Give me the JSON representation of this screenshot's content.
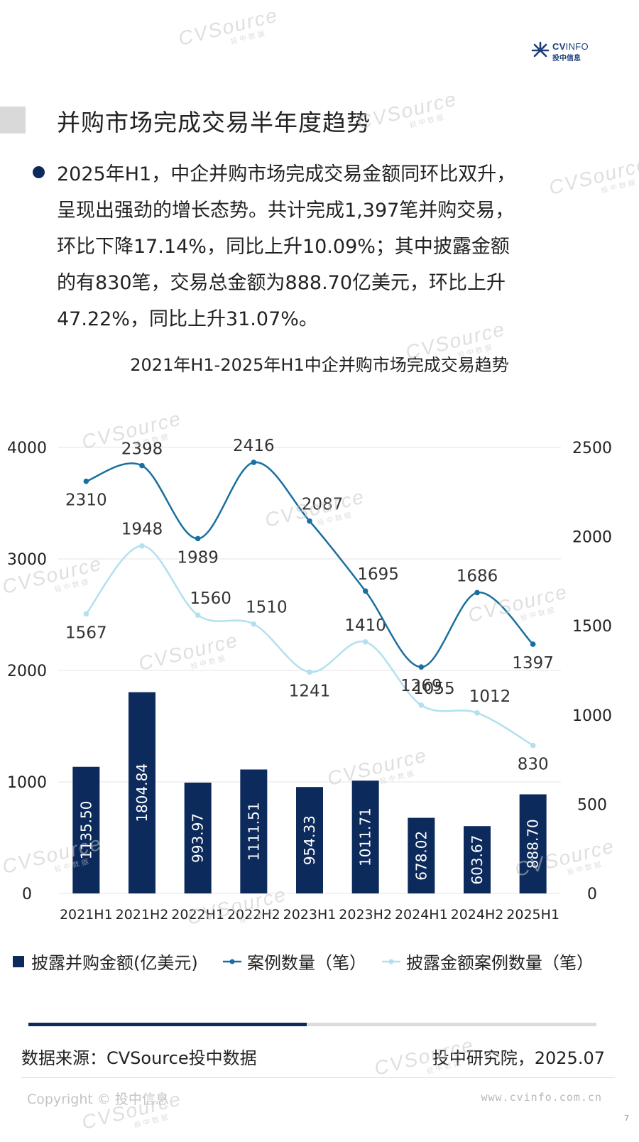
{
  "header": {
    "brand_en_strong": "CV",
    "brand_en_rest": "INFO",
    "brand_cn": "投中信息"
  },
  "watermark": {
    "text": "CVSource",
    "sub": "投中数据"
  },
  "section": {
    "title": "并购市场完成交易半年度趋势",
    "bullet_lines": [
      "2025年H1，中企并购市场完成交易金额同环比双升，",
      "呈现出强劲的增长态势。共计完成1,397笔并购交易，",
      "环比下降17.14%，同比上升10.09%；其中披露金额",
      "的有830笔，交易总金额为888.70亿美元，环比上升",
      "47.22%，同比上升31.07%。"
    ]
  },
  "chart_data": {
    "type": "bar",
    "title": "2021年H1-2025年H1中企并购市场完成交易趋势",
    "categories": [
      "2021H1",
      "2021H2",
      "2022H1",
      "2022H2",
      "2023H1",
      "2023H2",
      "2024H1",
      "2024H2",
      "2025H1"
    ],
    "series": [
      {
        "name": "披露并购金额(亿美元)",
        "type": "bar",
        "axis": "left",
        "color": "#0c2a5c",
        "values": [
          1135.5,
          1804.84,
          993.97,
          1111.51,
          954.33,
          1011.71,
          678.02,
          603.67,
          888.7
        ],
        "labels": [
          "1135.50",
          "1804.84",
          "993.97",
          "1111.51",
          "954.33",
          "1011.71",
          "678.02",
          "603.67",
          "888.70"
        ]
      },
      {
        "name": "案例数量（笔）",
        "type": "line",
        "axis": "right",
        "color": "#1a6fa0",
        "values": [
          2310,
          2398,
          1989,
          2416,
          2087,
          1695,
          1269,
          1686,
          1397
        ]
      },
      {
        "name": "披露金额案例数量（笔）",
        "type": "line",
        "axis": "right",
        "color": "#b3e0ef",
        "values": [
          1567,
          1948,
          1560,
          1510,
          1241,
          1410,
          1055,
          1012,
          830
        ]
      }
    ],
    "y_left": {
      "min": 0,
      "max": 4000,
      "ticks": [
        "0",
        "1000",
        "2000",
        "3000",
        "4000"
      ]
    },
    "y_right": {
      "min": 0,
      "max": 2500,
      "ticks": [
        "0",
        "500",
        "1000",
        "1500",
        "2000",
        "2500"
      ]
    },
    "grid": true,
    "legend_position": "bottom"
  },
  "legend": {
    "items": [
      {
        "label": "披露并购金额(亿美元)",
        "color": "#0c2a5c"
      },
      {
        "label": "案例数量（笔）",
        "color": "#1a6fa0"
      },
      {
        "label": "披露金额案例数量（笔）",
        "color": "#b3e0ef"
      }
    ]
  },
  "progress": {
    "fraction": 0.49
  },
  "footer": {
    "source": "数据来源：CVSource投中数据",
    "institute": "投中研究院，2025.07",
    "copyright": "Copyright © 投中信息",
    "website": "www.cvinfo.com.cn",
    "page_number": "7"
  }
}
